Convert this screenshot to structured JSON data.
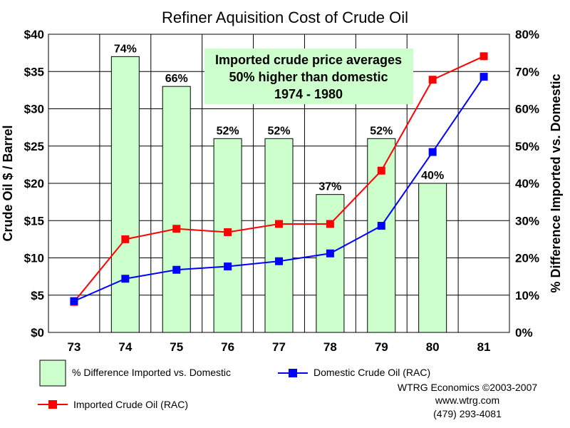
{
  "chart_data": {
    "type": "bar+line",
    "title": "Refiner Aquisition Cost of Crude Oil",
    "ylabel": "Crude Oil $ / Barrel",
    "y2label": "% Difference Imported vs. Domestic",
    "categories": [
      "73",
      "74",
      "75",
      "76",
      "77",
      "78",
      "79",
      "80",
      "81"
    ],
    "ylim": [
      0,
      40
    ],
    "y2lim": [
      0,
      80
    ],
    "y_ticks": [
      "$0",
      "$5",
      "$10",
      "$15",
      "$20",
      "$25",
      "$30",
      "$35",
      "$40"
    ],
    "y2_ticks": [
      "0%",
      "10%",
      "20%",
      "30%",
      "40%",
      "50%",
      "60%",
      "70%",
      "80%"
    ],
    "grid": true,
    "bars": {
      "name": "% Difference Imported vs. Domestic",
      "axis": "right",
      "values": [
        null,
        74,
        66,
        52,
        52,
        37,
        52,
        40,
        null
      ],
      "labels": [
        "",
        "74%",
        "66%",
        "52%",
        "52%",
        "37%",
        "52%",
        "40%",
        ""
      ],
      "color": "#ccffcc"
    },
    "series": [
      {
        "name": "Domestic Crude Oil (RAC)",
        "axis": "left",
        "color": "#0000ff",
        "values": [
          4.2,
          7.2,
          8.4,
          8.85,
          9.55,
          10.6,
          14.3,
          24.2,
          34.3
        ]
      },
      {
        "name": "Imported Crude Oil (RAC)",
        "axis": "left",
        "color": "#ff0000",
        "values": [
          4.1,
          12.5,
          13.9,
          13.45,
          14.55,
          14.55,
          21.7,
          33.9,
          37.05
        ]
      }
    ],
    "annotation": {
      "lines": [
        "Imported crude price averages",
        "50% higher than domestic",
        "1974 - 1980"
      ],
      "background": "#ccffcc"
    },
    "legend_placement": "bottom"
  },
  "credits": {
    "line1": "WTRG Economics  ©2003-2007",
    "line2": "www.wtrg.com",
    "line3": "(479) 293-4081"
  }
}
